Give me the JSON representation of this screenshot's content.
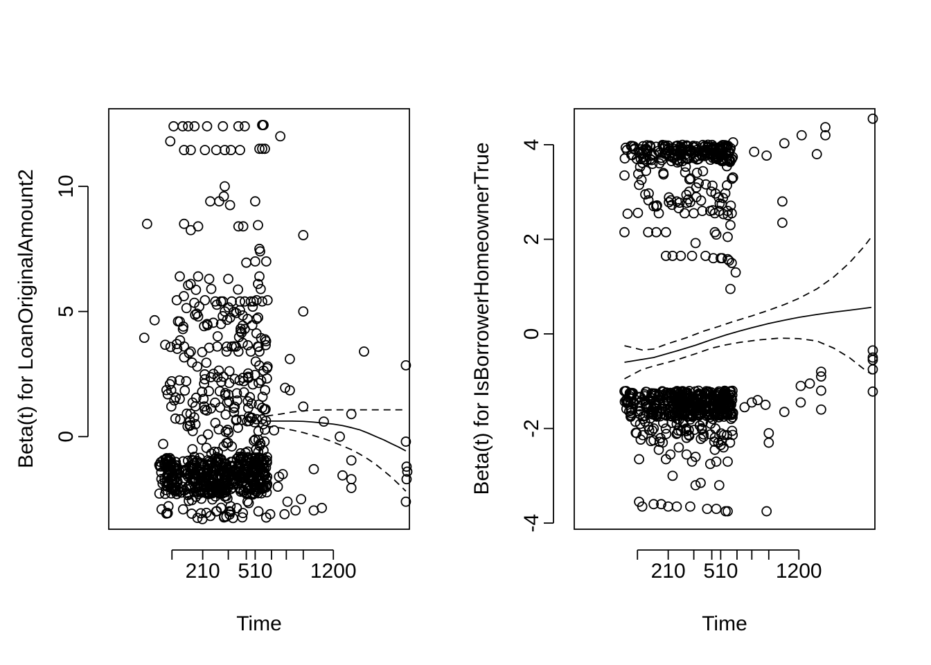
{
  "chart_data": [
    {
      "type": "scatter",
      "xlabel": "Time",
      "ylabel": "Beta(t) for LoanOriginalAmount2",
      "x_tick_marks": [
        95,
        210,
        340,
        450,
        510,
        630,
        750,
        900,
        1200
      ],
      "x_tick_labels": [
        {
          "at": 210,
          "label": "210"
        },
        {
          "at": 510,
          "label": "510"
        },
        {
          "at": 1200,
          "label": "1200"
        }
      ],
      "xlim": [
        0,
        2150
      ],
      "ylim": [
        -3.7,
        13.1
      ],
      "y_ticks": [
        0,
        5,
        10
      ],
      "y_tick_labels": [
        "0",
        "5",
        "10"
      ],
      "fit_line": {
        "x": [
          590,
          700,
          800,
          900,
          1000,
          1100,
          1200,
          1300,
          1400,
          1500,
          1600,
          1700,
          1800,
          1900,
          2000,
          2100
        ],
        "y": [
          0.62,
          0.62,
          0.62,
          0.61,
          0.58,
          0.54,
          0.5,
          0.44,
          0.36,
          0.27,
          0.14,
          0.0,
          -0.13,
          -0.28,
          -0.42,
          -0.57
        ]
      },
      "upper_band": {
        "x": [
          590,
          700,
          800,
          900,
          1000,
          1200,
          1400,
          1600,
          1800,
          2000,
          2100
        ],
        "y": [
          0.82,
          0.9,
          0.98,
          1.03,
          1.06,
          1.07,
          1.07,
          1.07,
          1.07,
          1.07,
          1.07
        ]
      },
      "lower_band": {
        "x": [
          590,
          700,
          800,
          900,
          1000,
          1100,
          1200,
          1300,
          1400,
          1500,
          1600,
          1700,
          1800,
          1900,
          2000,
          2100
        ],
        "y": [
          0.42,
          0.35,
          0.26,
          0.16,
          0.04,
          -0.08,
          -0.22,
          -0.37,
          -0.52,
          -0.7,
          -0.9,
          -1.12,
          -1.37,
          -1.62,
          -1.9,
          -2.18
        ]
      },
      "clusters": [
        {
          "x_range": [
            60,
            110
          ],
          "y_range": [
            -2.3,
            -0.8
          ],
          "count": 70
        },
        {
          "x_range": [
            110,
            330
          ],
          "y_range": [
            -2.3,
            -0.8
          ],
          "count": 170
        },
        {
          "x_range": [
            330,
            600
          ],
          "y_range": [
            -2.3,
            -0.8
          ],
          "count": 170
        },
        {
          "x_range": [
            60,
            600
          ],
          "y_range": [
            -3.3,
            0.6
          ],
          "count": 120
        },
        {
          "x_range": [
            60,
            600
          ],
          "y_range": [
            0.6,
            2.8
          ],
          "count": 90
        },
        {
          "x_range": [
            60,
            600
          ],
          "y_range": [
            2.8,
            6.2
          ],
          "count": 55
        }
      ],
      "points": [
        [
          100,
          12.4
        ],
        [
          130,
          12.4
        ],
        [
          150,
          12.4
        ],
        [
          175,
          12.4
        ],
        [
          230,
          12.4
        ],
        [
          310,
          12.4
        ],
        [
          400,
          12.4
        ],
        [
          440,
          12.4
        ],
        [
          560,
          12.45
        ],
        [
          565,
          12.45
        ],
        [
          570,
          12.45
        ],
        [
          90,
          11.8
        ],
        [
          135,
          11.45
        ],
        [
          160,
          11.45
        ],
        [
          220,
          11.45
        ],
        [
          275,
          11.45
        ],
        [
          320,
          11.45
        ],
        [
          355,
          11.45
        ],
        [
          410,
          11.45
        ],
        [
          540,
          11.5
        ],
        [
          560,
          11.5
        ],
        [
          580,
          11.5
        ],
        [
          700,
          12.0
        ],
        [
          320,
          10.0
        ],
        [
          315,
          9.6
        ],
        [
          290,
          9.4
        ],
        [
          350,
          9.25
        ],
        [
          245,
          9.4
        ],
        [
          510,
          9.4
        ],
        [
          35,
          8.5
        ],
        [
          135,
          8.5
        ],
        [
          190,
          8.4
        ],
        [
          160,
          8.25
        ],
        [
          400,
          8.4
        ],
        [
          430,
          8.4
        ],
        [
          530,
          8.45
        ],
        [
          900,
          8.05
        ],
        [
          540,
          7.5
        ],
        [
          545,
          7.4
        ],
        [
          590,
          7.0
        ],
        [
          450,
          6.95
        ],
        [
          510,
          7.0
        ],
        [
          120,
          6.4
        ],
        [
          150,
          6.05
        ],
        [
          190,
          6.4
        ],
        [
          240,
          6.3
        ],
        [
          250,
          5.9
        ],
        [
          340,
          6.3
        ],
        [
          540,
          6.4
        ],
        [
          530,
          6.1
        ],
        [
          110,
          5.45
        ],
        [
          195,
          5.2
        ],
        [
          220,
          5.45
        ],
        [
          270,
          5.4
        ],
        [
          300,
          5.4
        ],
        [
          310,
          5.4
        ],
        [
          360,
          5.4
        ],
        [
          410,
          5.4
        ],
        [
          440,
          5.4
        ],
        [
          480,
          5.4
        ],
        [
          500,
          5.4
        ],
        [
          520,
          5.45
        ],
        [
          560,
          5.4
        ],
        [
          600,
          5.45
        ],
        [
          900,
          5.0
        ],
        [
          50,
          4.65
        ],
        [
          120,
          4.6
        ],
        [
          190,
          4.8
        ],
        [
          230,
          4.5
        ],
        [
          260,
          4.55
        ],
        [
          300,
          4.5
        ],
        [
          490,
          4.45
        ],
        [
          520,
          4.7
        ],
        [
          440,
          4.3
        ],
        [
          420,
          4.15
        ],
        [
          30,
          3.95
        ],
        [
          110,
          3.7
        ],
        [
          135,
          3.6
        ],
        [
          160,
          3.4
        ],
        [
          240,
          3.55
        ],
        [
          280,
          3.6
        ],
        [
          330,
          3.4
        ],
        [
          360,
          3.6
        ],
        [
          400,
          3.4
        ],
        [
          480,
          3.4
        ],
        [
          540,
          3.4
        ],
        [
          600,
          2.8
        ],
        [
          780,
          3.1
        ],
        [
          1550,
          3.4
        ],
        [
          2100,
          2.85
        ],
        [
          740,
          1.95
        ],
        [
          780,
          1.85
        ],
        [
          900,
          1.2
        ],
        [
          1100,
          0.6
        ],
        [
          1270,
          0.0
        ],
        [
          1400,
          0.9
        ],
        [
          1400,
          -0.95
        ],
        [
          1400,
          -1.7
        ],
        [
          1400,
          -2.05
        ],
        [
          1000,
          -1.3
        ],
        [
          1000,
          -2.95
        ],
        [
          880,
          -2.5
        ],
        [
          1300,
          -1.55
        ],
        [
          2100,
          -0.2
        ],
        [
          2110,
          -1.2
        ],
        [
          2110,
          -1.7
        ],
        [
          2120,
          -1.4
        ],
        [
          2100,
          -2.6
        ],
        [
          690,
          -1.6
        ],
        [
          680,
          -2.0
        ],
        [
          1080,
          -2.85
        ],
        [
          830,
          -2.95
        ],
        [
          760,
          -2.6
        ],
        [
          735,
          -3.1
        ],
        [
          650,
          0.25
        ],
        [
          720,
          -1.5
        ],
        [
          620,
          -3.1
        ]
      ]
    },
    {
      "type": "scatter",
      "xlabel": "Time",
      "ylabel": "Beta(t) for IsBorrowerHomeownerTrue",
      "x_tick_marks": [
        95,
        210,
        340,
        450,
        510,
        630,
        750,
        900,
        1200
      ],
      "x_tick_labels": [
        {
          "at": 210,
          "label": "210"
        },
        {
          "at": 510,
          "label": "510"
        },
        {
          "at": 1200,
          "label": "1200"
        }
      ],
      "xlim": [
        0,
        2150
      ],
      "ylim": [
        -4.13,
        4.76
      ],
      "y_ticks": [
        -4,
        -2,
        0,
        2,
        4
      ],
      "y_tick_labels": [
        "-4",
        "-2",
        "0",
        "2",
        "4"
      ],
      "fit_line": {
        "x": [
          60,
          150,
          250,
          350,
          450,
          550,
          650,
          750,
          900,
          1050,
          1200,
          1400,
          1600,
          1800,
          2000,
          2100
        ],
        "y": [
          -0.6,
          -0.5,
          -0.36,
          -0.24,
          -0.12,
          -0.02,
          0.06,
          0.13,
          0.22,
          0.29,
          0.35,
          0.41,
          0.46,
          0.5,
          0.54,
          0.56
        ]
      },
      "upper_band": {
        "x": [
          60,
          110,
          150,
          200,
          300,
          400,
          500,
          600,
          750,
          900,
          1050,
          1200,
          1400,
          1600,
          1800,
          2000,
          2100
        ],
        "y": [
          -0.25,
          -0.34,
          -0.32,
          -0.22,
          -0.08,
          0.06,
          0.16,
          0.26,
          0.38,
          0.5,
          0.62,
          0.75,
          0.95,
          1.2,
          1.5,
          1.85,
          2.05
        ]
      },
      "lower_band": {
        "x": [
          60,
          110,
          150,
          250,
          350,
          450,
          550,
          650,
          800,
          1000,
          1200,
          1400,
          1600,
          1800,
          2000,
          2100
        ],
        "y": [
          -0.95,
          -0.75,
          -0.68,
          -0.55,
          -0.42,
          -0.3,
          -0.23,
          -0.18,
          -0.13,
          -0.09,
          -0.1,
          -0.15,
          -0.3,
          -0.5,
          -0.75,
          -0.85
        ]
      },
      "clusters": [
        {
          "x_range": [
            60,
            600
          ],
          "y_range": [
            -1.75,
            -1.2
          ],
          "count": 330
        },
        {
          "x_range": [
            60,
            600
          ],
          "y_range": [
            -2.3,
            -1.2
          ],
          "count": 130
        },
        {
          "x_range": [
            60,
            600
          ],
          "y_range": [
            3.65,
            4.0
          ],
          "count": 170
        },
        {
          "x_range": [
            60,
            600
          ],
          "y_range": [
            2.5,
            4.0
          ],
          "count": 80
        }
      ],
      "points": [
        [
          2120,
          4.55
        ],
        [
          1500,
          4.37
        ],
        [
          1500,
          4.2
        ],
        [
          1230,
          4.2
        ],
        [
          1050,
          4.03
        ],
        [
          880,
          3.77
        ],
        [
          770,
          3.85
        ],
        [
          1400,
          3.8
        ],
        [
          1030,
          2.8
        ],
        [
          1030,
          2.35
        ],
        [
          600,
          4.05
        ],
        [
          60,
          2.15
        ],
        [
          130,
          2.15
        ],
        [
          160,
          2.15
        ],
        [
          200,
          2.15
        ],
        [
          470,
          2.15
        ],
        [
          480,
          2.1
        ],
        [
          560,
          2.05
        ],
        [
          580,
          2.3
        ],
        [
          350,
          1.92
        ],
        [
          200,
          1.65
        ],
        [
          230,
          1.65
        ],
        [
          270,
          1.65
        ],
        [
          330,
          1.65
        ],
        [
          410,
          1.65
        ],
        [
          460,
          1.6
        ],
        [
          510,
          1.6
        ],
        [
          520,
          1.6
        ],
        [
          560,
          1.58
        ],
        [
          570,
          1.55
        ],
        [
          590,
          1.5
        ],
        [
          620,
          1.3
        ],
        [
          580,
          0.95
        ],
        [
          60,
          3.35
        ],
        [
          100,
          3.15
        ],
        [
          120,
          2.95
        ],
        [
          150,
          2.7
        ],
        [
          170,
          2.55
        ],
        [
          250,
          2.8
        ],
        [
          290,
          2.55
        ],
        [
          340,
          2.55
        ],
        [
          390,
          2.6
        ],
        [
          440,
          2.6
        ],
        [
          470,
          2.55
        ],
        [
          500,
          2.6
        ],
        [
          560,
          2.6
        ],
        [
          590,
          2.55
        ],
        [
          690,
          -1.55
        ],
        [
          750,
          -1.45
        ],
        [
          800,
          -1.4
        ],
        [
          870,
          -1.5
        ],
        [
          900,
          -2.1
        ],
        [
          900,
          -2.3
        ],
        [
          1050,
          -1.65
        ],
        [
          1220,
          -1.1
        ],
        [
          1220,
          -1.45
        ],
        [
          1320,
          -1.05
        ],
        [
          1450,
          -0.8
        ],
        [
          1450,
          -0.9
        ],
        [
          1450,
          -1.2
        ],
        [
          1450,
          -1.6
        ],
        [
          2120,
          -0.35
        ],
        [
          2120,
          -0.5
        ],
        [
          2120,
          -0.55
        ],
        [
          2120,
          -0.75
        ],
        [
          2120,
          -1.22
        ],
        [
          100,
          -2.65
        ],
        [
          150,
          -2.25
        ],
        [
          170,
          -2.45
        ],
        [
          200,
          -2.65
        ],
        [
          220,
          -2.55
        ],
        [
          230,
          -3.0
        ],
        [
          260,
          -2.4
        ],
        [
          300,
          -2.55
        ],
        [
          350,
          -3.2
        ],
        [
          350,
          -2.6
        ],
        [
          380,
          -3.15
        ],
        [
          330,
          -2.7
        ],
        [
          440,
          -2.75
        ],
        [
          480,
          -2.7
        ],
        [
          500,
          -3.2
        ],
        [
          470,
          -2.45
        ],
        [
          510,
          -2.35
        ],
        [
          530,
          -2.4
        ],
        [
          560,
          -2.7
        ],
        [
          100,
          -3.55
        ],
        [
          110,
          -3.65
        ],
        [
          150,
          -3.6
        ],
        [
          180,
          -3.6
        ],
        [
          210,
          -3.65
        ],
        [
          250,
          -3.65
        ],
        [
          320,
          -3.65
        ],
        [
          420,
          -3.7
        ],
        [
          480,
          -3.7
        ],
        [
          545,
          -3.75
        ],
        [
          560,
          -3.75
        ],
        [
          880,
          -3.75
        ]
      ]
    }
  ]
}
